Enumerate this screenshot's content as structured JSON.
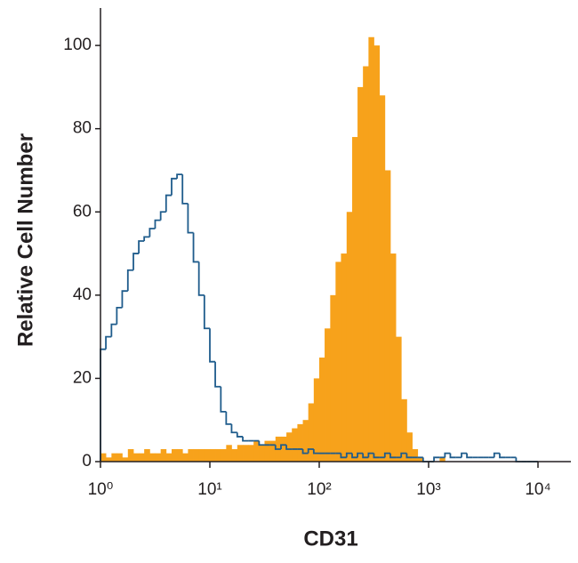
{
  "chart_data": {
    "type": "histogram",
    "xlabel": "CD31",
    "ylabel": "Relative Cell Number",
    "xscale": "log",
    "bins": [
      1,
      1.12,
      1.26,
      1.41,
      1.58,
      1.78,
      2,
      2.24,
      2.51,
      2.82,
      3.16,
      3.55,
      3.98,
      4.47,
      5.01,
      5.62,
      6.31,
      7.08,
      7.94,
      8.91,
      10,
      11.2,
      12.6,
      14.1,
      15.8,
      17.8,
      20,
      22.4,
      25.1,
      28.2,
      31.6,
      35.5,
      39.8,
      44.7,
      50.1,
      56.2,
      63.1,
      70.8,
      79.4,
      89.1,
      100,
      112,
      126,
      141,
      158,
      178,
      200,
      224,
      251,
      282,
      316,
      355,
      398,
      447,
      501,
      562,
      631,
      708,
      794,
      891,
      1000,
      1120,
      1260,
      1410,
      1580,
      1780,
      2000,
      2240,
      2510,
      2820,
      3160,
      3550,
      3980,
      4470,
      5010,
      5620,
      6310,
      7080,
      7940,
      8910,
      10000
    ],
    "series": [
      {
        "color": "#f7a21b",
        "fill": true,
        "values": [
          2,
          1,
          2,
          2,
          1,
          3,
          2,
          2,
          3,
          2,
          2,
          3,
          2,
          3,
          3,
          2,
          3,
          3,
          3,
          3,
          3,
          3,
          3,
          4,
          3,
          4,
          4,
          4,
          5,
          4,
          5,
          5,
          6,
          6,
          7,
          8,
          9,
          10,
          14,
          20,
          25,
          32,
          40,
          48,
          50,
          60,
          78,
          90,
          95,
          102,
          100,
          88,
          70,
          50,
          30,
          15,
          7,
          3,
          1,
          0,
          0,
          0,
          1,
          0,
          0,
          0,
          0,
          0,
          0,
          0,
          0,
          0,
          0,
          0,
          0,
          0,
          0,
          0,
          0,
          0
        ]
      },
      {
        "color": "#1f5c8c",
        "fill": false,
        "values": [
          27,
          30,
          33,
          37,
          41,
          46,
          50,
          53,
          54,
          56,
          58,
          60,
          64,
          68,
          69,
          62,
          55,
          48,
          40,
          32,
          24,
          18,
          12,
          9,
          7,
          6,
          5,
          5,
          5,
          4,
          4,
          4,
          3,
          4,
          3,
          3,
          3,
          2,
          3,
          2,
          2,
          2,
          2,
          2,
          1,
          2,
          1,
          2,
          1,
          2,
          1,
          1,
          2,
          1,
          1,
          2,
          1,
          1,
          1,
          0,
          0,
          1,
          1,
          2,
          1,
          1,
          2,
          1,
          1,
          1,
          1,
          1,
          2,
          1,
          1,
          1,
          0,
          0,
          0,
          0
        ]
      }
    ],
    "xlim": [
      1,
      20000
    ],
    "xticks": [
      {
        "value": 1,
        "label": "10⁰"
      },
      {
        "value": 10,
        "label": "10¹"
      },
      {
        "value": 100,
        "label": "10²"
      },
      {
        "value": 1000,
        "label": "10³"
      },
      {
        "value": 10000,
        "label": "10⁴"
      }
    ],
    "ylim": [
      0,
      109
    ],
    "yticks": [
      0,
      20,
      40,
      60,
      80,
      100
    ],
    "grid": false
  }
}
